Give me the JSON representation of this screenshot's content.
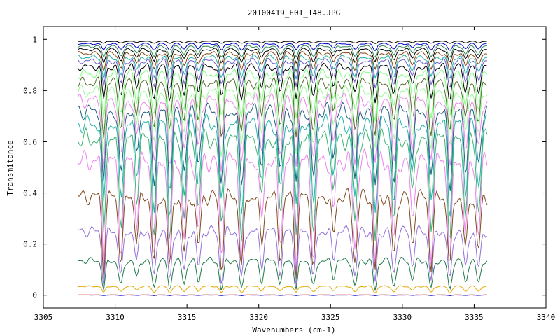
{
  "chart_data": {
    "type": "line",
    "title": "20100419_E01_148.JPG",
    "xlabel": "Wavenumbers (cm-1)",
    "ylabel": "Transmitance",
    "xlim": [
      3305,
      3340
    ],
    "ylim": [
      -0.05,
      1.05
    ],
    "x_ticks": [
      3305,
      3310,
      3315,
      3320,
      3325,
      3330,
      3335,
      3340
    ],
    "y_ticks": [
      0,
      0.2,
      0.4,
      0.6,
      0.8,
      1
    ],
    "x_tick_labels": [
      "3305",
      "3310",
      "3315",
      "3320",
      "3325",
      "3330",
      "3335",
      "3340"
    ],
    "y_tick_labels": [
      "0",
      "0.2",
      "0.4",
      "0.6",
      "0.8",
      "1"
    ],
    "grid": false,
    "legend": "none",
    "x_range": [
      3307.4,
      3335.9
    ],
    "absorption_lines": [
      3309.2,
      3310.4,
      3311.5,
      3312.7,
      3313.8,
      3314.8,
      3315.8,
      3317.4,
      3318.8,
      3320.2,
      3321.5,
      3322.6,
      3323.8,
      3325.2,
      3326.7,
      3328.1,
      3329.4,
      3330.7,
      3332.0,
      3333.3,
      3334.4,
      3335.3
    ],
    "series": [
      {
        "color": "#000000",
        "baseline": 0.995,
        "depth": 0.01
      },
      {
        "color": "#0000cc",
        "baseline": 0.99,
        "depth": 0.03
      },
      {
        "color": "#2e8b57",
        "baseline": 0.985,
        "depth": 0.05
      },
      {
        "color": "#000000",
        "baseline": 0.975,
        "depth": 0.06
      },
      {
        "color": "#8b4513",
        "baseline": 0.965,
        "depth": 0.08
      },
      {
        "color": "#20b2aa",
        "baseline": 0.955,
        "depth": 0.1
      },
      {
        "color": "#6a5acd",
        "baseline": 0.945,
        "depth": 0.12
      },
      {
        "color": "#000000",
        "baseline": 0.93,
        "depth": 0.15
      },
      {
        "color": "#7fff7f",
        "baseline": 0.915,
        "depth": 0.2
      },
      {
        "color": "#556b2f",
        "baseline": 0.89,
        "depth": 0.24
      },
      {
        "color": "#98fb98",
        "baseline": 0.865,
        "depth": 0.28
      },
      {
        "color": "#ee82ee",
        "baseline": 0.84,
        "depth": 0.32
      },
      {
        "color": "#1f5f7f",
        "baseline": 0.81,
        "depth": 0.36
      },
      {
        "color": "#20b2aa",
        "baseline": 0.77,
        "depth": 0.4
      },
      {
        "color": "#3cb371",
        "baseline": 0.72,
        "depth": 0.44
      },
      {
        "color": "#ee82ee",
        "baseline": 0.64,
        "depth": 0.46
      },
      {
        "color": "#7f4a1f",
        "baseline": 0.47,
        "depth": 0.34
      },
      {
        "color": "#9370db",
        "baseline": 0.31,
        "depth": 0.24
      },
      {
        "color": "#1f7a4a",
        "baseline": 0.17,
        "depth": 0.14
      },
      {
        "color": "#e6a800",
        "baseline": 0.042,
        "depth": 0.03
      },
      {
        "color": "#cc0000",
        "baseline": 0.002,
        "depth": 0.003
      },
      {
        "color": "#0000cc",
        "baseline": 0.001,
        "depth": 0.002
      }
    ]
  }
}
